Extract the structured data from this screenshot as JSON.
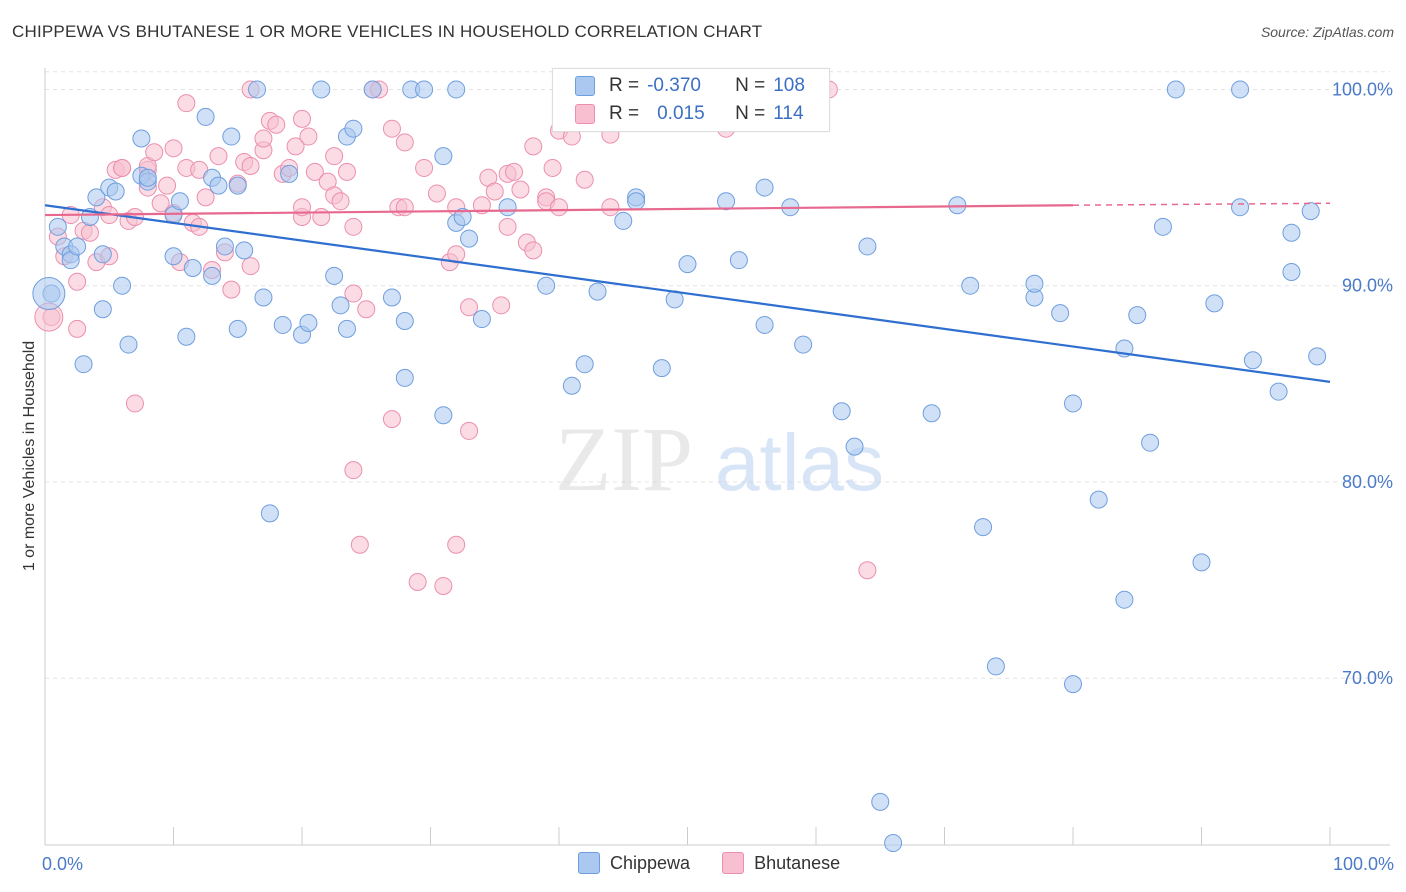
{
  "header": {
    "title": "CHIPPEWA VS BHUTANESE 1 OR MORE VEHICLES IN HOUSEHOLD CORRELATION CHART",
    "source": "Source: ZipAtlas.com"
  },
  "watermark": {
    "zip": "ZIP",
    "atlas": "atlas"
  },
  "legend": {
    "rows": [
      {
        "r_label": "R =",
        "r_value": "-0.370",
        "n_label": "N =",
        "n_value": "108",
        "color": "#aac8f0"
      },
      {
        "r_label": "R =",
        "r_value": "0.015",
        "n_label": "N =",
        "n_value": "114",
        "color": "#f7bfd0"
      }
    ]
  },
  "bottom_legend": {
    "items": [
      "Chippewa",
      "Bhutanese"
    ]
  },
  "colors": {
    "chippewa_fill": "#aac8f0",
    "chippewa_stroke": "#6f9ede",
    "chippewa_line": "#2f6fd0",
    "bhutanese_fill": "#f7bfd0",
    "bhutanese_stroke": "#ec8fae",
    "bhutanese_line": "#e8698f",
    "grid": "#e4e4e4",
    "tick_text": "#4a7ac8"
  },
  "chart_data": {
    "type": "scatter",
    "title": "CHIPPEWA VS BHUTANESE 1 OR MORE VEHICLES IN HOUSEHOLD CORRELATION CHART",
    "xlabel": "",
    "ylabel": "1 or more Vehicles in Household",
    "xlim": [
      0,
      100
    ],
    "ylim": [
      61.5,
      101.5
    ],
    "x_ticks_labels": [
      "0.0%",
      "100.0%"
    ],
    "y_ticks": [
      70,
      80,
      90,
      100
    ],
    "y_tick_labels": [
      "70.0%",
      "80.0%",
      "90.0%",
      "100.0%"
    ],
    "grid": true,
    "legend_position": "top-center",
    "series": [
      {
        "name": "Chippewa",
        "R": -0.37,
        "N": 108,
        "trend": {
          "x": [
            0,
            100
          ],
          "y": [
            94.1,
            85.1
          ]
        },
        "points": [
          [
            0.5,
            89.6
          ],
          [
            1,
            93
          ],
          [
            1.5,
            92
          ],
          [
            2,
            91.6
          ],
          [
            2,
            91.3
          ],
          [
            2.5,
            92
          ],
          [
            3,
            86
          ],
          [
            3.5,
            93.5
          ],
          [
            4,
            94.5
          ],
          [
            4.5,
            91.6
          ],
          [
            4.5,
            88.8
          ],
          [
            5,
            95
          ],
          [
            5.5,
            94.8
          ],
          [
            6.5,
            87
          ],
          [
            7.5,
            97.5
          ],
          [
            7.5,
            95.6
          ],
          [
            8,
            95.3
          ],
          [
            8,
            95.5
          ],
          [
            10,
            93.6
          ],
          [
            10,
            91.5
          ],
          [
            10.5,
            94.3
          ],
          [
            11,
            87.4
          ],
          [
            11.5,
            90.9
          ],
          [
            12.5,
            98.6
          ],
          [
            13,
            90.5
          ],
          [
            13,
            95.5
          ],
          [
            13.5,
            95.1
          ],
          [
            14.5,
            97.6
          ],
          [
            15,
            95.1
          ],
          [
            15,
            87.8
          ],
          [
            15.5,
            91.8
          ],
          [
            16.5,
            100
          ],
          [
            17,
            89.4
          ],
          [
            17.5,
            78.4
          ],
          [
            18.5,
            88
          ],
          [
            19,
            95.7
          ],
          [
            20,
            87.5
          ],
          [
            20.5,
            88.1
          ],
          [
            21.5,
            100
          ],
          [
            22.5,
            90.5
          ],
          [
            23,
            89
          ],
          [
            23.5,
            97.6
          ],
          [
            23.5,
            87.8
          ],
          [
            24,
            98
          ],
          [
            25.5,
            100
          ],
          [
            27,
            89.4
          ],
          [
            28,
            88.2
          ],
          [
            28,
            85.3
          ],
          [
            28.5,
            100
          ],
          [
            29.5,
            100
          ],
          [
            31,
            96.6
          ],
          [
            32,
            100
          ],
          [
            32,
            93.2
          ],
          [
            32.5,
            93.5
          ],
          [
            33,
            92.4
          ],
          [
            34,
            88.3
          ],
          [
            36,
            94
          ],
          [
            39,
            90
          ],
          [
            41,
            84.9
          ],
          [
            43,
            89.7
          ],
          [
            45,
            93.3
          ],
          [
            46,
            94.5
          ],
          [
            46,
            94.3
          ],
          [
            48,
            85.8
          ],
          [
            49,
            89.3
          ],
          [
            50,
            91.1
          ],
          [
            53,
            94.3
          ],
          [
            54,
            91.3
          ],
          [
            56,
            95
          ],
          [
            58,
            94
          ],
          [
            59,
            87
          ],
          [
            62,
            83.6
          ],
          [
            63,
            81.8
          ],
          [
            64,
            92
          ],
          [
            65,
            63.7
          ],
          [
            66,
            61.6
          ],
          [
            69,
            83.5
          ],
          [
            71,
            94.1
          ],
          [
            73,
            77.7
          ],
          [
            74,
            70.6
          ],
          [
            77,
            89.4
          ],
          [
            77,
            90.1
          ],
          [
            79,
            88.6
          ],
          [
            80,
            84
          ],
          [
            80,
            69.7
          ],
          [
            82,
            79.1
          ],
          [
            84,
            86.8
          ],
          [
            84,
            74
          ],
          [
            86,
            82
          ],
          [
            87,
            93
          ],
          [
            88,
            100
          ],
          [
            90,
            75.9
          ],
          [
            91,
            89.1
          ],
          [
            93,
            100
          ],
          [
            93,
            94
          ],
          [
            94,
            86.2
          ],
          [
            96,
            84.6
          ],
          [
            97,
            90.7
          ],
          [
            97,
            92.7
          ],
          [
            99,
            86.4
          ],
          [
            98.5,
            93.8
          ],
          [
            31,
            83.4
          ],
          [
            42,
            86
          ],
          [
            56,
            88
          ],
          [
            72,
            90
          ],
          [
            85,
            88.5
          ],
          [
            14,
            92
          ],
          [
            6,
            90
          ]
        ]
      },
      {
        "name": "Bhutanese",
        "R": 0.015,
        "N": 114,
        "trend": {
          "x": [
            0,
            80
          ],
          "y": [
            93.6,
            94.1
          ]
        },
        "trend_dashed": {
          "x": [
            80,
            100
          ],
          "y": [
            94.1,
            94.2
          ]
        },
        "points": [
          [
            0.5,
            88.4
          ],
          [
            1,
            92.5
          ],
          [
            1.5,
            91.5
          ],
          [
            2,
            93.6
          ],
          [
            2.5,
            87.8
          ],
          [
            2.5,
            90.2
          ],
          [
            3,
            92.8
          ],
          [
            3.5,
            92.7
          ],
          [
            4,
            91.2
          ],
          [
            4.5,
            94
          ],
          [
            5,
            93.6
          ],
          [
            5,
            91.5
          ],
          [
            5.5,
            95.9
          ],
          [
            6,
            96
          ],
          [
            6.5,
            93.3
          ],
          [
            7,
            93.5
          ],
          [
            7,
            84
          ],
          [
            8,
            95.9
          ],
          [
            8,
            96.1
          ],
          [
            8.5,
            96.8
          ],
          [
            9,
            94.2
          ],
          [
            9.5,
            95.1
          ],
          [
            10,
            97
          ],
          [
            10,
            93.7
          ],
          [
            10.5,
            91.2
          ],
          [
            11,
            99.3
          ],
          [
            11,
            96
          ],
          [
            11.5,
            93.2
          ],
          [
            12,
            95.9
          ],
          [
            12.5,
            94.5
          ],
          [
            13,
            90.8
          ],
          [
            13.5,
            96.6
          ],
          [
            14,
            91.7
          ],
          [
            14.5,
            89.8
          ],
          [
            15,
            95.2
          ],
          [
            15.5,
            96.3
          ],
          [
            16,
            100
          ],
          [
            16,
            96.1
          ],
          [
            17,
            96.9
          ],
          [
            17,
            97.5
          ],
          [
            17.5,
            98.4
          ],
          [
            18,
            98.2
          ],
          [
            18.5,
            95.7
          ],
          [
            19,
            96
          ],
          [
            19.5,
            97.1
          ],
          [
            20,
            93.5
          ],
          [
            20,
            98.5
          ],
          [
            20.5,
            97.6
          ],
          [
            21,
            95.8
          ],
          [
            21.5,
            93.5
          ],
          [
            22,
            95.3
          ],
          [
            22.5,
            94.6
          ],
          [
            22.5,
            96.6
          ],
          [
            23,
            94.3
          ],
          [
            23.5,
            95.8
          ],
          [
            24,
            89.6
          ],
          [
            24,
            80.6
          ],
          [
            24.5,
            76.8
          ],
          [
            25,
            88.8
          ],
          [
            25.5,
            100
          ],
          [
            26,
            100
          ],
          [
            27,
            83.2
          ],
          [
            27,
            98
          ],
          [
            27.5,
            94
          ],
          [
            28,
            97.3
          ],
          [
            29,
            74.9
          ],
          [
            29.5,
            96
          ],
          [
            30.5,
            94.7
          ],
          [
            31,
            74.7
          ],
          [
            31.5,
            91.2
          ],
          [
            32,
            91.6
          ],
          [
            32,
            76.8
          ],
          [
            33,
            82.6
          ],
          [
            33,
            88.9
          ],
          [
            34,
            94.1
          ],
          [
            34.5,
            95.5
          ],
          [
            35,
            94.8
          ],
          [
            35.5,
            89
          ],
          [
            36,
            95.7
          ],
          [
            36.5,
            95.8
          ],
          [
            37,
            94.9
          ],
          [
            37.5,
            92.2
          ],
          [
            38,
            97.1
          ],
          [
            38,
            91.8
          ],
          [
            39,
            94.5
          ],
          [
            39,
            94.3
          ],
          [
            39.5,
            96
          ],
          [
            40,
            97.9
          ],
          [
            41,
            97.6
          ],
          [
            42,
            95.4
          ],
          [
            43,
            100
          ],
          [
            44,
            97.7
          ],
          [
            45,
            99.9
          ],
          [
            46,
            100
          ],
          [
            47,
            100
          ],
          [
            48,
            100
          ],
          [
            50,
            100
          ],
          [
            53,
            98
          ],
          [
            55,
            100
          ],
          [
            57,
            100
          ],
          [
            60,
            100
          ],
          [
            61,
            100
          ],
          [
            64,
            75.5
          ],
          [
            6,
            96
          ],
          [
            8,
            95
          ],
          [
            12,
            93
          ],
          [
            16,
            91
          ],
          [
            20,
            94
          ],
          [
            24,
            93
          ],
          [
            28,
            94
          ],
          [
            32,
            94
          ],
          [
            36,
            93
          ],
          [
            40,
            94
          ],
          [
            44,
            94
          ]
        ]
      }
    ]
  }
}
